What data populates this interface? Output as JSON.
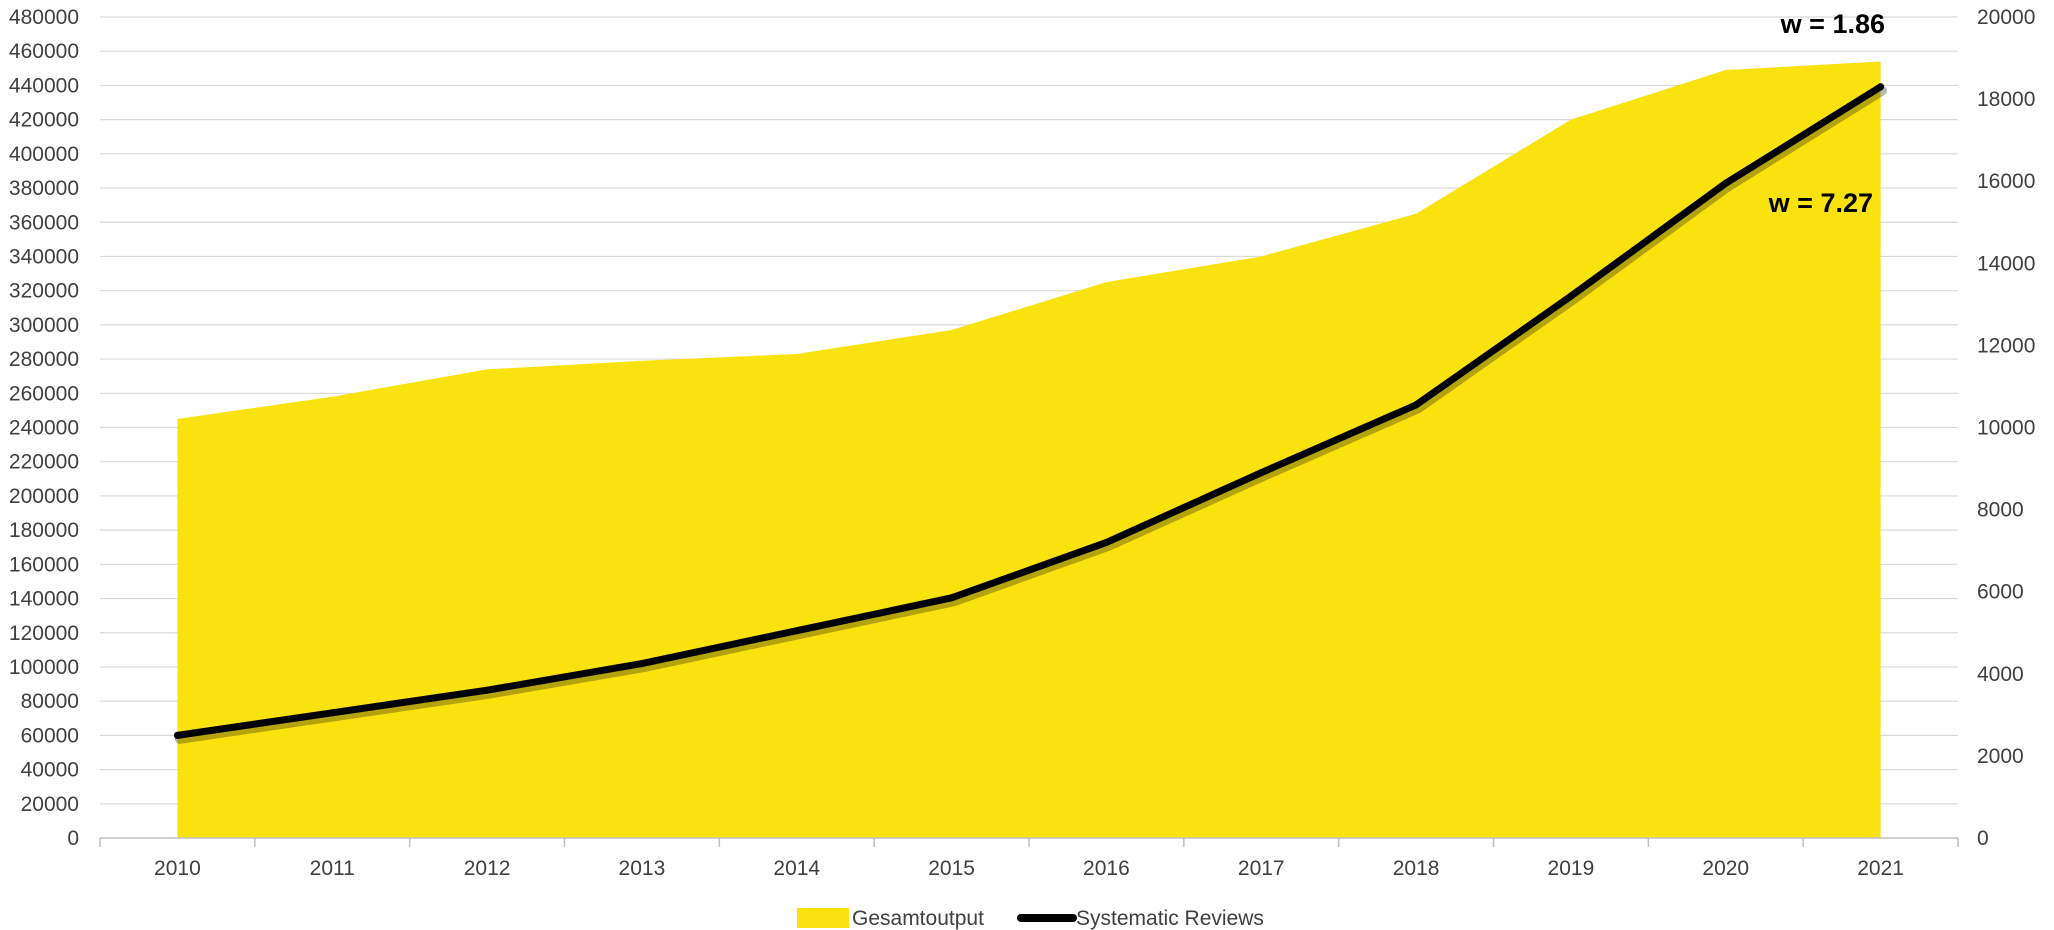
{
  "chart_data": {
    "type": "area",
    "title": "",
    "xlabel": "",
    "ylabel_left": "",
    "ylabel_right": "",
    "categories": [
      "2010",
      "2011",
      "2012",
      "2013",
      "2014",
      "2015",
      "2016",
      "2017",
      "2018",
      "2019",
      "2020",
      "2021"
    ],
    "y_left_lim": [
      0,
      480000
    ],
    "y_left_step": 20000,
    "y_right_lim": [
      0,
      20000
    ],
    "y_right_step": 2000,
    "grid": true,
    "legend_position": "bottom-center",
    "series": [
      {
        "name": "Gesamtoutput",
        "type": "area",
        "axis": "left",
        "color": "#FAE20F",
        "values": [
          245000,
          258000,
          274000,
          279000,
          283000,
          297000,
          325000,
          340000,
          365000,
          420000,
          449000,
          454000
        ]
      },
      {
        "name": "Systematic Reviews",
        "type": "line",
        "axis": "right",
        "color": "#000000",
        "values": [
          2500,
          3050,
          3600,
          4250,
          5050,
          5850,
          7200,
          8900,
          10550,
          13200,
          15950,
          18300
        ]
      }
    ],
    "annotations": [
      {
        "text": "w = 1.86",
        "series": "Gesamtoutput",
        "anchor_category": "2021"
      },
      {
        "text": "w = 7.27",
        "series": "Systematic Reviews",
        "anchor_category": "2020"
      }
    ]
  }
}
